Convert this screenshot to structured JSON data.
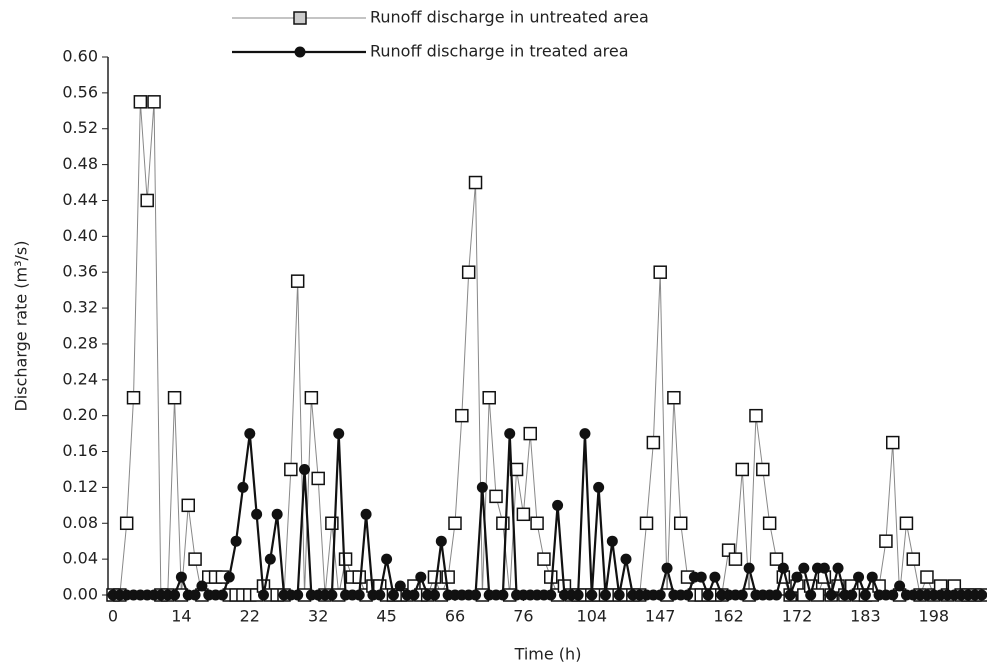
{
  "chart_data": {
    "type": "line",
    "x_label": "Time (h)",
    "y_label": "Discharge rate (m³/s)",
    "categories": [
      "0",
      null,
      null,
      null,
      null,
      null,
      null,
      null,
      null,
      null,
      "14",
      null,
      null,
      null,
      null,
      null,
      null,
      null,
      null,
      null,
      "22",
      null,
      null,
      null,
      null,
      null,
      null,
      null,
      null,
      null,
      "32",
      null,
      null,
      null,
      null,
      null,
      null,
      null,
      null,
      null,
      "45",
      null,
      null,
      null,
      null,
      null,
      null,
      null,
      null,
      null,
      "66",
      null,
      null,
      null,
      null,
      null,
      null,
      null,
      null,
      null,
      "76",
      null,
      null,
      null,
      null,
      null,
      null,
      null,
      null,
      null,
      "104",
      null,
      null,
      null,
      null,
      null,
      null,
      null,
      null,
      null,
      "147",
      null,
      null,
      null,
      null,
      null,
      null,
      null,
      null,
      null,
      "162",
      null,
      null,
      null,
      null,
      null,
      null,
      null,
      null,
      null,
      "172",
      null,
      null,
      null,
      null,
      null,
      null,
      null,
      null,
      null,
      "183",
      null,
      null,
      null,
      null,
      null,
      null,
      null,
      null,
      null,
      "198",
      null,
      null,
      null,
      null,
      null,
      null,
      null
    ],
    "series": [
      {
        "name": "Runoff discharge in untreated area",
        "color": "#888888",
        "marker": "square",
        "values": [
          0,
          0,
          0.08,
          0.22,
          0.55,
          0.44,
          0.55,
          0,
          0,
          0.22,
          0,
          0.1,
          0.04,
          0,
          0.02,
          0.02,
          0.02,
          0,
          0,
          0,
          0,
          0,
          0.01,
          0,
          0,
          0,
          0.14,
          0.35,
          0,
          0.22,
          0.13,
          0,
          0.08,
          0,
          0.04,
          0.02,
          0.02,
          0,
          0.01,
          0.01,
          0,
          0,
          0,
          0,
          0.01,
          0,
          0,
          0.02,
          0,
          0.02,
          0.08,
          0.2,
          0.36,
          0.46,
          0,
          0.22,
          0.11,
          0.08,
          0,
          0.14,
          0.09,
          0.18,
          0.08,
          0.04,
          0.02,
          0,
          0.01,
          0,
          0,
          0,
          0,
          0,
          0,
          0,
          0,
          0,
          0,
          0,
          0.08,
          0.17,
          0.36,
          0,
          0.22,
          0.08,
          0.02,
          0,
          0,
          0,
          0,
          0,
          0.05,
          0.04,
          0.14,
          0,
          0.2,
          0.14,
          0.08,
          0.04,
          0.02,
          0,
          0.01,
          0,
          0.01,
          0,
          0.02,
          0,
          0.01,
          0,
          0.01,
          0,
          0,
          0,
          0.01,
          0.06,
          0.17,
          0,
          0.08,
          0.04,
          0,
          0.02,
          0,
          0.01,
          0,
          0.01,
          0,
          0,
          0,
          0
        ]
      },
      {
        "name": "Runoff discharge in treated area",
        "color": "#111111",
        "marker": "circle",
        "values": [
          0,
          0,
          0,
          0,
          0,
          0,
          0,
          0,
          0,
          0,
          0.02,
          0,
          0,
          0.01,
          0,
          0,
          0,
          0.02,
          0.06,
          0.12,
          0.18,
          0.09,
          0,
          0.04,
          0.09,
          0,
          0,
          0,
          0.14,
          0,
          0,
          0,
          0,
          0.18,
          0,
          0,
          0,
          0.09,
          0,
          0,
          0.04,
          0,
          0.01,
          0,
          0,
          0.02,
          0,
          0,
          0.06,
          0,
          0,
          0,
          0,
          0,
          0.12,
          0,
          0,
          0,
          0.18,
          0,
          0,
          0,
          0,
          0,
          0,
          0.1,
          0,
          0,
          0,
          0.18,
          0,
          0.12,
          0,
          0.06,
          0,
          0.04,
          0,
          0,
          0,
          0,
          0,
          0.03,
          0,
          0,
          0,
          0.02,
          0.02,
          0,
          0.02,
          0,
          0,
          0,
          0,
          0.03,
          0,
          0,
          0,
          0,
          0.03,
          0,
          0.02,
          0.03,
          0,
          0.03,
          0.03,
          0,
          0.03,
          0,
          0,
          0.02,
          0,
          0.02,
          0,
          0,
          0,
          0.01,
          0,
          0,
          0,
          0,
          0,
          0,
          0,
          0,
          0,
          0,
          0,
          0
        ]
      }
    ],
    "ylim": [
      0,
      0.6
    ],
    "yticks": [
      {
        "value": 0,
        "label": "0.00"
      },
      {
        "value": 0.04,
        "label": "0.04"
      },
      {
        "value": 0.08,
        "label": "0.08"
      },
      {
        "value": 0.12,
        "label": "0.12"
      },
      {
        "value": 0.16,
        "label": "0.16"
      },
      {
        "value": 0.2,
        "label": "0.20"
      },
      {
        "value": 0.24,
        "label": "0.24"
      },
      {
        "value": 0.28,
        "label": "0.28"
      },
      {
        "value": 0.32,
        "label": "0.32"
      },
      {
        "value": 0.36,
        "label": "0.36"
      },
      {
        "value": 0.4,
        "label": "0.40"
      },
      {
        "value": 0.44,
        "label": "0.44"
      },
      {
        "value": 0.48,
        "label": "0.48"
      },
      {
        "value": 0.52,
        "label": "0.52"
      },
      {
        "value": 0.56,
        "label": "0.56"
      },
      {
        "value": 0.6,
        "label": "0.60"
      }
    ],
    "legend": "top"
  }
}
